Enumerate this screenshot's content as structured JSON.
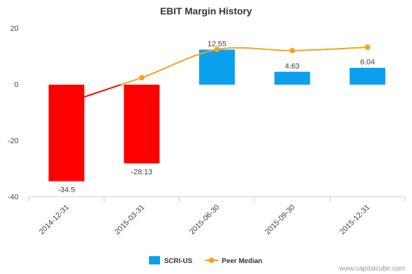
{
  "chart_data": {
    "type": "bar",
    "title": "EBIT Margin History",
    "categories": [
      "2014-12-31",
      "2015-03-31",
      "2015-06-30",
      "2015-09-30",
      "2015-12-31"
    ],
    "series": [
      {
        "name": "SCRI-US",
        "kind": "bar",
        "values": [
          -34.5,
          -28.13,
          12.55,
          4.63,
          6.04
        ],
        "labels": [
          "-34.5",
          "-28.13",
          "12.55",
          "4.63",
          "6.04"
        ],
        "color_positive": "#0aa0ee",
        "color_negative": "#ff0000"
      },
      {
        "name": "Peer Median",
        "kind": "line",
        "values": [
          -6.5,
          2.5,
          12.6,
          12.2,
          13.4
        ],
        "color": "#f5a21b",
        "color_negative": "#ff0000"
      }
    ],
    "yticks": [
      "20",
      "0",
      "-20",
      "-40"
    ],
    "ylim": [
      -40,
      20
    ],
    "grid": false,
    "legend_position": "bottom-center"
  },
  "credit": "www.capitalcube.com"
}
